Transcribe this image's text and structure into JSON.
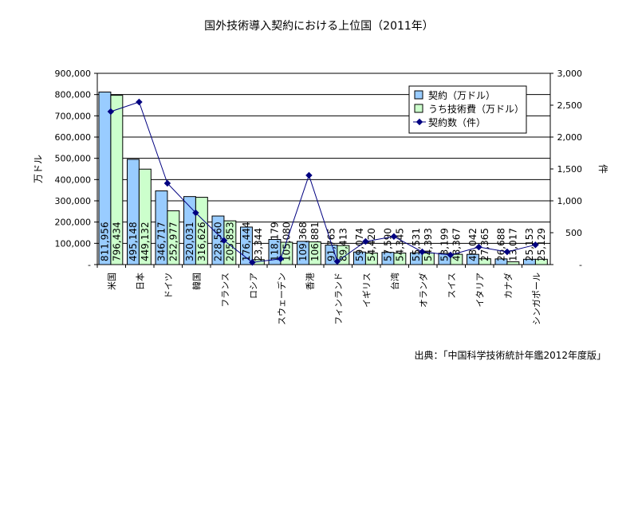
{
  "chart_data": {
    "type": "bar",
    "title": "国外技術導入契約における上位国（2011年）",
    "source": "出典：「中国科学技術統計年鑑2012年度版」",
    "ylabel": "万ドル",
    "y2label": "件",
    "ylim": [
      0,
      900000
    ],
    "y2lim": [
      0,
      3000
    ],
    "yticks": [
      "-",
      "100,000",
      "200,000",
      "300,000",
      "400,000",
      "500,000",
      "600,000",
      "700,000",
      "800,000",
      "900,000"
    ],
    "y2ticks": [
      "-",
      "500",
      "1,000",
      "1,500",
      "2,000",
      "2,500",
      "3,000"
    ],
    "grid": true,
    "legend_placement": "top-right",
    "categories": [
      "米国",
      "日本",
      "ドイツ",
      "韓国",
      "フランス",
      "ロシア",
      "スウェーデン",
      "香港",
      "フィンランド",
      "イギリス",
      "台湾",
      "オランダ",
      "スイス",
      "イタリア",
      "カナダ",
      "シンガポール"
    ],
    "series": [
      {
        "name": "契約（万ドル）",
        "type": "bar",
        "color": "#99ccff",
        "axis": "left",
        "values": [
          811956,
          495148,
          346717,
          320031,
          228560,
          176444,
          118179,
          109368,
          91765,
          59074,
          57590,
          55531,
          53199,
          48042,
          26688,
          25153
        ],
        "labels": [
          "811,956",
          "495,148",
          "346,717",
          "320,031",
          "228,560",
          "176,444",
          "118,179",
          "109,368",
          "91,765",
          "59,074",
          "57,590",
          "55,531",
          "53,199",
          "48,042",
          "26,688",
          "25,153"
        ]
      },
      {
        "name": "うち技術費（万ドル）",
        "type": "bar",
        "color": "#ccffcc",
        "axis": "left",
        "values": [
          796434,
          449132,
          252977,
          316626,
          205853,
          23344,
          105080,
          106881,
          89413,
          54420,
          54345,
          54393,
          48367,
          27365,
          13017,
          25129
        ],
        "labels": [
          "796,434",
          "449,132",
          "252,977",
          "316,626",
          "205,853",
          "23,344",
          "105,080",
          "106,881",
          "89,413",
          "54,420",
          "54,345",
          "54,393",
          "48,367",
          "27,365",
          "13,017",
          "25,129"
        ]
      },
      {
        "name": "契約数（件）",
        "type": "line",
        "color": "#000080",
        "axis": "right",
        "values": [
          2400,
          2550,
          1275,
          812,
          378,
          35,
          90,
          1400,
          50,
          363,
          440,
          200,
          150,
          275,
          200,
          310
        ]
      }
    ]
  }
}
